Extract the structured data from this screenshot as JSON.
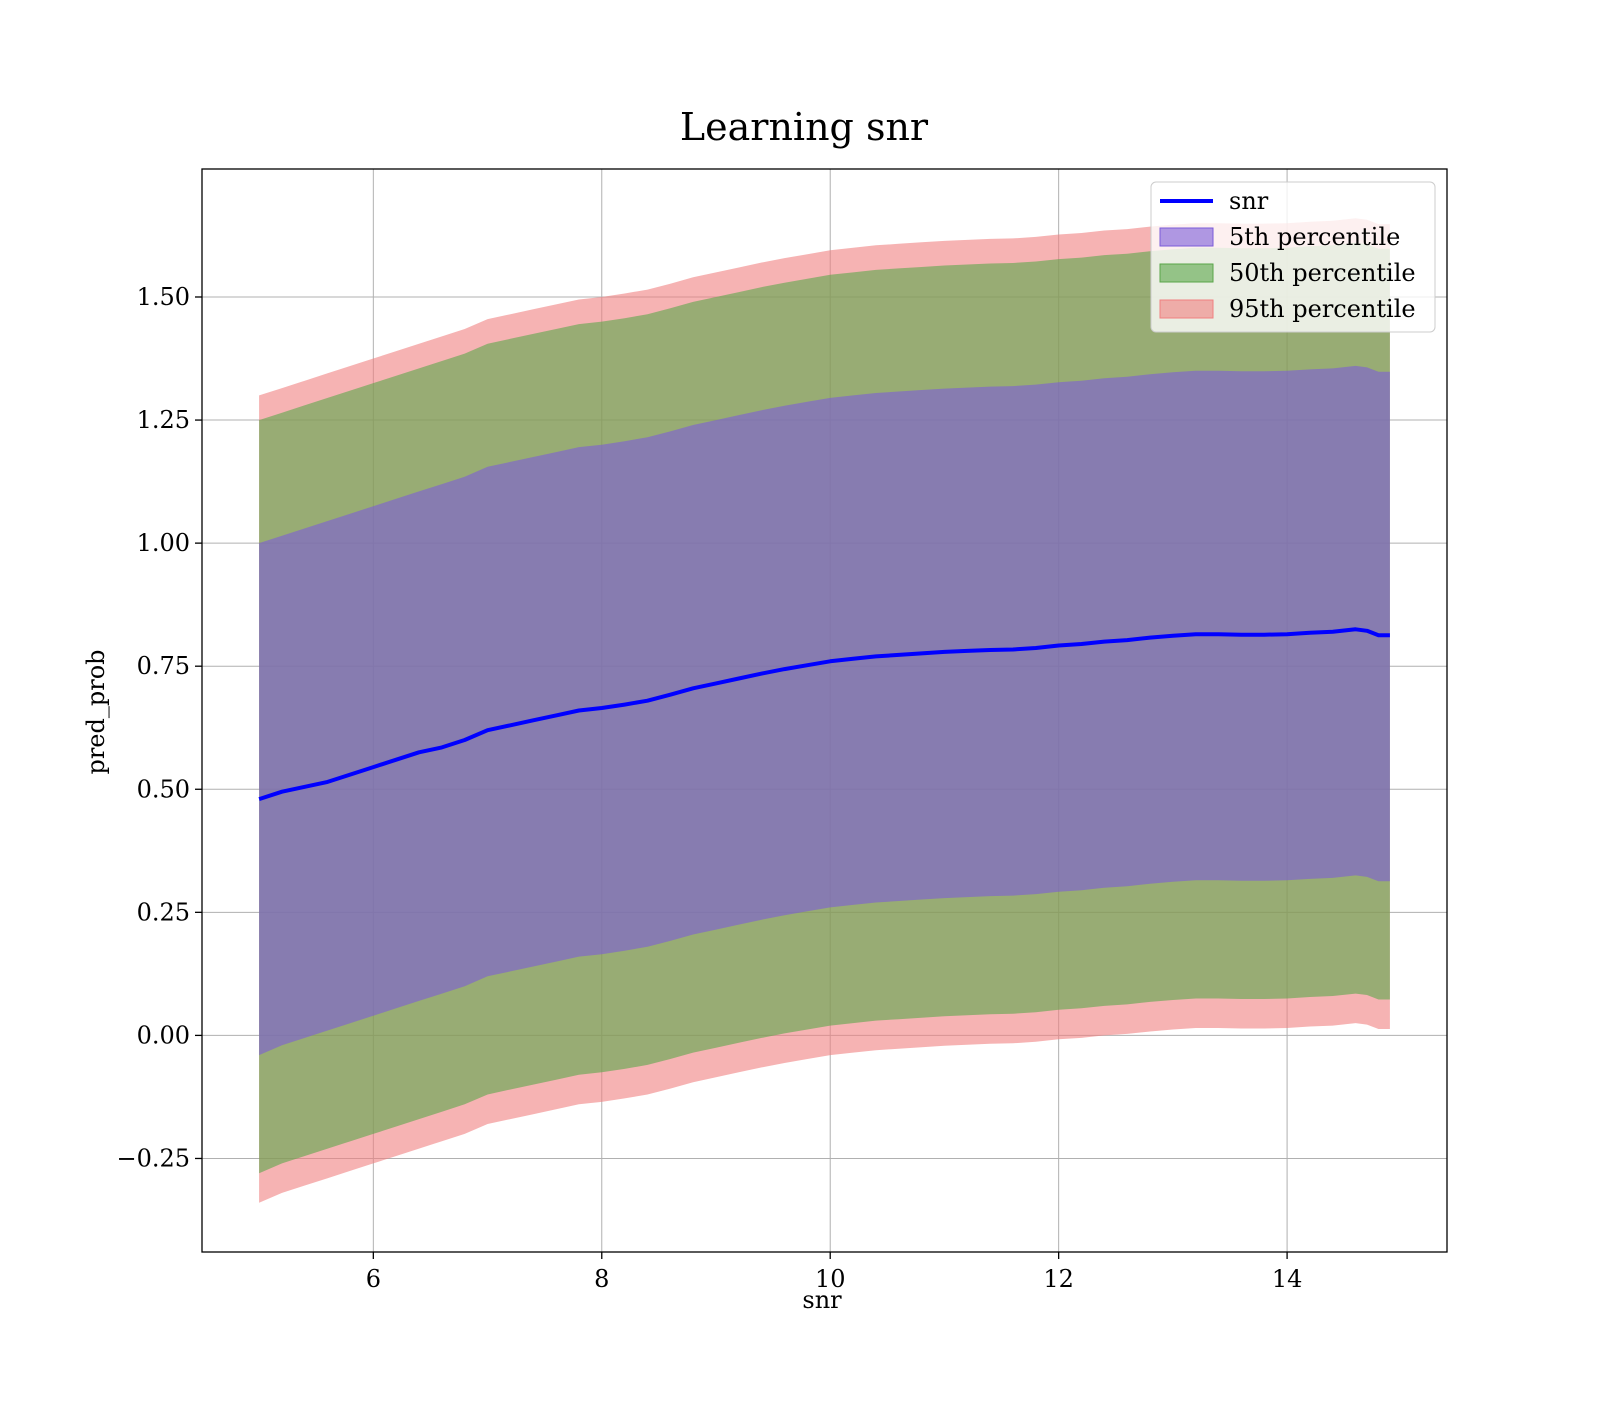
{
  "chart_data": {
    "type": "area",
    "title": "Learning snr",
    "xlabel": "snr",
    "ylabel": "pred_prob",
    "xlim": [
      4.5,
      15.4
    ],
    "ylim": [
      -0.44,
      1.76
    ],
    "xticks": [
      6,
      8,
      10,
      12,
      14
    ],
    "yticks": [
      -0.25,
      0.0,
      0.25,
      0.5,
      0.75,
      1.0,
      1.25,
      1.5
    ],
    "ytick_labels": [
      "−0.25",
      "0.00",
      "0.25",
      "0.50",
      "0.75",
      "1.00",
      "1.25",
      "1.50"
    ],
    "xtick_labels": [
      "6",
      "8",
      "10",
      "12",
      "14"
    ],
    "grid": true,
    "legend_position": "top-right",
    "x": [
      5.0,
      5.2,
      5.4,
      5.6,
      5.8,
      6.0,
      6.2,
      6.4,
      6.6,
      6.8,
      7.0,
      7.2,
      7.4,
      7.6,
      7.8,
      8.0,
      8.2,
      8.4,
      8.6,
      8.8,
      9.0,
      9.2,
      9.4,
      9.6,
      9.8,
      10.0,
      10.2,
      10.4,
      10.6,
      10.8,
      11.0,
      11.2,
      11.4,
      11.6,
      11.8,
      12.0,
      12.2,
      12.4,
      12.6,
      12.8,
      13.0,
      13.2,
      13.4,
      13.6,
      13.8,
      14.0,
      14.2,
      14.4,
      14.6,
      14.7,
      14.8,
      14.9
    ],
    "series": [
      {
        "name": "snr",
        "kind": "line",
        "color": "#0000ff",
        "values": [
          0.48,
          0.495,
          0.505,
          0.515,
          0.53,
          0.545,
          0.56,
          0.575,
          0.585,
          0.6,
          0.62,
          0.63,
          0.64,
          0.65,
          0.66,
          0.665,
          0.672,
          0.68,
          0.692,
          0.705,
          0.715,
          0.725,
          0.735,
          0.744,
          0.752,
          0.76,
          0.765,
          0.77,
          0.773,
          0.776,
          0.779,
          0.781,
          0.783,
          0.784,
          0.787,
          0.792,
          0.795,
          0.8,
          0.803,
          0.808,
          0.812,
          0.815,
          0.815,
          0.814,
          0.814,
          0.815,
          0.818,
          0.82,
          0.825,
          0.822,
          0.813,
          0.813
        ]
      },
      {
        "name": "5th percentile",
        "kind": "band",
        "color": "#7b5bd9",
        "lower": [
          -0.04,
          -0.02,
          -0.005,
          0.01,
          0.025,
          0.04,
          0.055,
          0.07,
          0.085,
          0.1,
          0.12,
          0.13,
          0.14,
          0.15,
          0.16,
          0.165,
          0.172,
          0.18,
          0.192,
          0.205,
          0.215,
          0.225,
          0.235,
          0.244,
          0.252,
          0.26,
          0.265,
          0.27,
          0.273,
          0.276,
          0.279,
          0.281,
          0.283,
          0.284,
          0.287,
          0.292,
          0.295,
          0.3,
          0.303,
          0.308,
          0.312,
          0.315,
          0.315,
          0.314,
          0.314,
          0.315,
          0.318,
          0.32,
          0.325,
          0.322,
          0.313,
          0.313
        ],
        "upper": [
          1.0,
          1.015,
          1.03,
          1.045,
          1.06,
          1.075,
          1.09,
          1.105,
          1.12,
          1.135,
          1.155,
          1.165,
          1.175,
          1.185,
          1.195,
          1.2,
          1.207,
          1.215,
          1.227,
          1.24,
          1.25,
          1.26,
          1.27,
          1.279,
          1.287,
          1.295,
          1.3,
          1.305,
          1.308,
          1.311,
          1.314,
          1.316,
          1.318,
          1.319,
          1.322,
          1.327,
          1.33,
          1.335,
          1.338,
          1.343,
          1.347,
          1.35,
          1.35,
          1.349,
          1.349,
          1.35,
          1.353,
          1.355,
          1.36,
          1.357,
          1.348,
          1.348
        ]
      },
      {
        "name": "50th percentile",
        "kind": "band",
        "color": "#5aa64a",
        "lower": [
          -0.28,
          -0.26,
          -0.245,
          -0.23,
          -0.215,
          -0.2,
          -0.185,
          -0.17,
          -0.155,
          -0.14,
          -0.12,
          -0.11,
          -0.1,
          -0.09,
          -0.08,
          -0.075,
          -0.068,
          -0.06,
          -0.048,
          -0.035,
          -0.025,
          -0.015,
          -0.005,
          0.004,
          0.012,
          0.02,
          0.025,
          0.03,
          0.033,
          0.036,
          0.039,
          0.041,
          0.043,
          0.044,
          0.047,
          0.052,
          0.055,
          0.06,
          0.063,
          0.068,
          0.072,
          0.075,
          0.075,
          0.074,
          0.074,
          0.075,
          0.078,
          0.08,
          0.085,
          0.082,
          0.073,
          0.073
        ],
        "upper": [
          1.25,
          1.265,
          1.28,
          1.295,
          1.31,
          1.325,
          1.34,
          1.355,
          1.37,
          1.385,
          1.405,
          1.415,
          1.425,
          1.435,
          1.445,
          1.45,
          1.457,
          1.465,
          1.477,
          1.49,
          1.5,
          1.51,
          1.52,
          1.529,
          1.537,
          1.545,
          1.55,
          1.555,
          1.558,
          1.561,
          1.564,
          1.566,
          1.568,
          1.569,
          1.572,
          1.577,
          1.58,
          1.585,
          1.588,
          1.593,
          1.597,
          1.6,
          1.6,
          1.599,
          1.599,
          1.6,
          1.603,
          1.605,
          1.61,
          1.607,
          1.598,
          1.598
        ]
      },
      {
        "name": "95th percentile",
        "kind": "band",
        "color": "#f08080",
        "lower": [
          -0.34,
          -0.32,
          -0.305,
          -0.29,
          -0.275,
          -0.26,
          -0.245,
          -0.23,
          -0.215,
          -0.2,
          -0.18,
          -0.17,
          -0.16,
          -0.15,
          -0.14,
          -0.135,
          -0.128,
          -0.12,
          -0.108,
          -0.095,
          -0.085,
          -0.075,
          -0.065,
          -0.056,
          -0.048,
          -0.04,
          -0.035,
          -0.03,
          -0.027,
          -0.024,
          -0.021,
          -0.019,
          -0.017,
          -0.016,
          -0.013,
          -0.008,
          -0.005,
          0.0,
          0.003,
          0.008,
          0.012,
          0.015,
          0.015,
          0.014,
          0.014,
          0.015,
          0.018,
          0.02,
          0.025,
          0.022,
          0.013,
          0.013
        ],
        "upper": [
          1.3,
          1.315,
          1.33,
          1.345,
          1.36,
          1.375,
          1.39,
          1.405,
          1.42,
          1.435,
          1.455,
          1.465,
          1.475,
          1.485,
          1.495,
          1.5,
          1.507,
          1.515,
          1.527,
          1.54,
          1.55,
          1.56,
          1.57,
          1.579,
          1.587,
          1.595,
          1.6,
          1.605,
          1.608,
          1.611,
          1.614,
          1.616,
          1.618,
          1.619,
          1.622,
          1.627,
          1.63,
          1.635,
          1.638,
          1.643,
          1.647,
          1.65,
          1.65,
          1.649,
          1.649,
          1.65,
          1.653,
          1.655,
          1.66,
          1.657,
          1.648,
          1.648
        ]
      }
    ]
  }
}
